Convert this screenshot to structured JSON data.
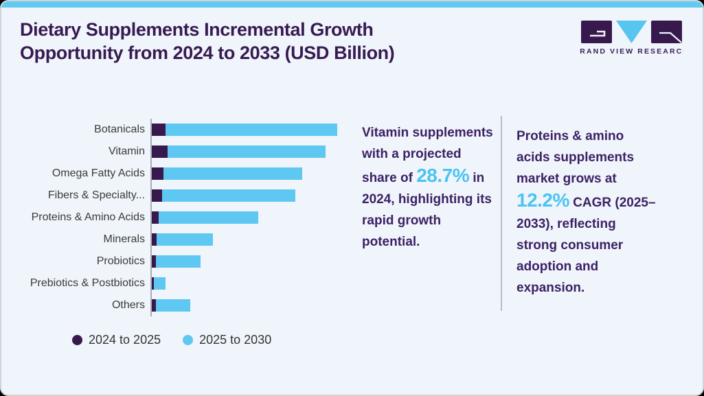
{
  "card": {
    "background": "#eff5fa",
    "top_strip_color": "#62c9f2",
    "border_color": "#ccd5dc"
  },
  "header": {
    "title_lines": [
      "Dietary Supplements Incremental Growth",
      "Opportunity from 2024 to 2033 (USD Billion)"
    ],
    "title_color": "#381a52"
  },
  "logo": {
    "brand": "Grand View Research",
    "wordmark": "GRAND VIEW RESEARCH",
    "square_color": "#38194e",
    "triangle_color": "#56c5f0"
  },
  "chart_data": {
    "type": "bar",
    "orientation": "horizontal",
    "stacked": true,
    "title": "Dietary Supplements Incremental Growth Opportunity from 2024 to 2033 (USD Billion)",
    "categories": [
      "Botanicals",
      "Vitamin",
      "Omega Fatty Acids",
      "Fibers & Specialty...",
      "Proteins & Amino Acids",
      "Minerals",
      "Probiotics",
      "Prebiotics & Postbiotics",
      "Others"
    ],
    "series": [
      {
        "name": "2024 to 2025",
        "color": "#38194e",
        "values": [
          7.4,
          8.4,
          6.4,
          5.7,
          3.7,
          2.7,
          2.2,
          1.0,
          2.2
        ]
      },
      {
        "name": "2025 to 2030",
        "color": "#5ec8f2",
        "values": [
          92.6,
          85.3,
          74.7,
          71.7,
          53.7,
          30.3,
          24.1,
          6.4,
          18.5
        ]
      }
    ],
    "totals_relative": [
      100,
      93.7,
      81.1,
      77.4,
      57.4,
      33.0,
      26.3,
      7.4,
      20.7
    ],
    "value_axis": {
      "visible": false,
      "range": [
        0,
        100
      ],
      "unit": "relative bar length, max total = 100 (no numeric axis labels shown)"
    },
    "grid": false,
    "legend_position": "bottom-left"
  },
  "callouts": [
    {
      "before": "Vitamin supplements with a projected share of ",
      "highlight": "28.7%",
      "after": " in 2024, highlighting its rapid growth potential.",
      "highlight_color": "#4cc3f1"
    },
    {
      "before": "Proteins & amino acids supplements market grows at ",
      "highlight": "12.2%",
      "after": " CAGR (2025–2033), reflecting strong consumer adoption and expansion.",
      "highlight_color": "#4cc3f1"
    }
  ]
}
